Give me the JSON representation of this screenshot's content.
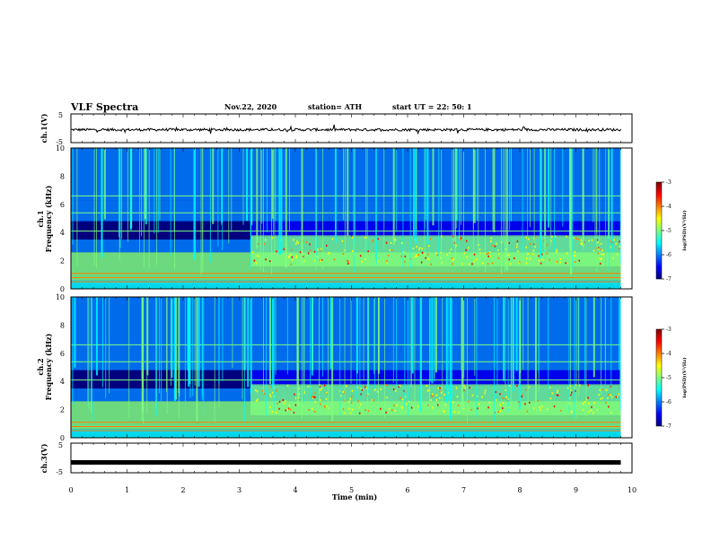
{
  "header": {
    "title": "VLF Spectra",
    "date": "Nov.22, 2020",
    "station": "station= ATH",
    "start": "start  UT =   22: 50: 1"
  },
  "colors": {
    "map": [
      "#00007f",
      "#0000ff",
      "#007fff",
      "#00ffff",
      "#7fff7f",
      "#ffff00",
      "#ff7f00",
      "#ff0000",
      "#7f0000"
    ],
    "trace": "#000000"
  },
  "chart_data": [
    {
      "type": "line",
      "ylabel": "ch.1(V)",
      "xlim": [
        0,
        10
      ],
      "ylim": [
        -5,
        5
      ],
      "yticks": [
        "5",
        "-5"
      ],
      "baseline": -0.5
    },
    {
      "type": "heatmap",
      "ylabel_line1": "ch.1",
      "ylabel_line2": "Frequency  (kHz)",
      "ylim": [
        0,
        10
      ],
      "yticks": [
        "0",
        "2",
        "4",
        "6",
        "8",
        "10"
      ],
      "colorbar": {
        "label": "log(PSD)(V²/Hz)",
        "ticks": [
          "-3",
          "-4",
          "-5",
          "-6",
          "-7"
        ],
        "range": [
          -7,
          -3
        ]
      }
    },
    {
      "type": "heatmap",
      "ylabel_line1": "ch.2",
      "ylabel_line2": "Frequency  (kHz)",
      "ylim": [
        0,
        10
      ],
      "yticks": [
        "0",
        "2",
        "4",
        "6",
        "8",
        "10"
      ],
      "colorbar": {
        "label": "log(PSD)(V²/Hz)",
        "ticks": [
          "-3",
          "-4",
          "-5",
          "-6",
          "-7"
        ],
        "range": [
          -7,
          -3
        ]
      }
    },
    {
      "type": "line",
      "ylabel": "ch.3(V)",
      "ylim": [
        -5,
        5
      ],
      "yticks": [
        "5",
        "-5"
      ],
      "baseline": -1.5,
      "xlabel": "Time  (min)",
      "xlim": [
        0,
        10
      ],
      "xticks": [
        "0",
        "1",
        "2",
        "3",
        "4",
        "5",
        "6",
        "7",
        "8",
        "9",
        "10"
      ]
    }
  ]
}
